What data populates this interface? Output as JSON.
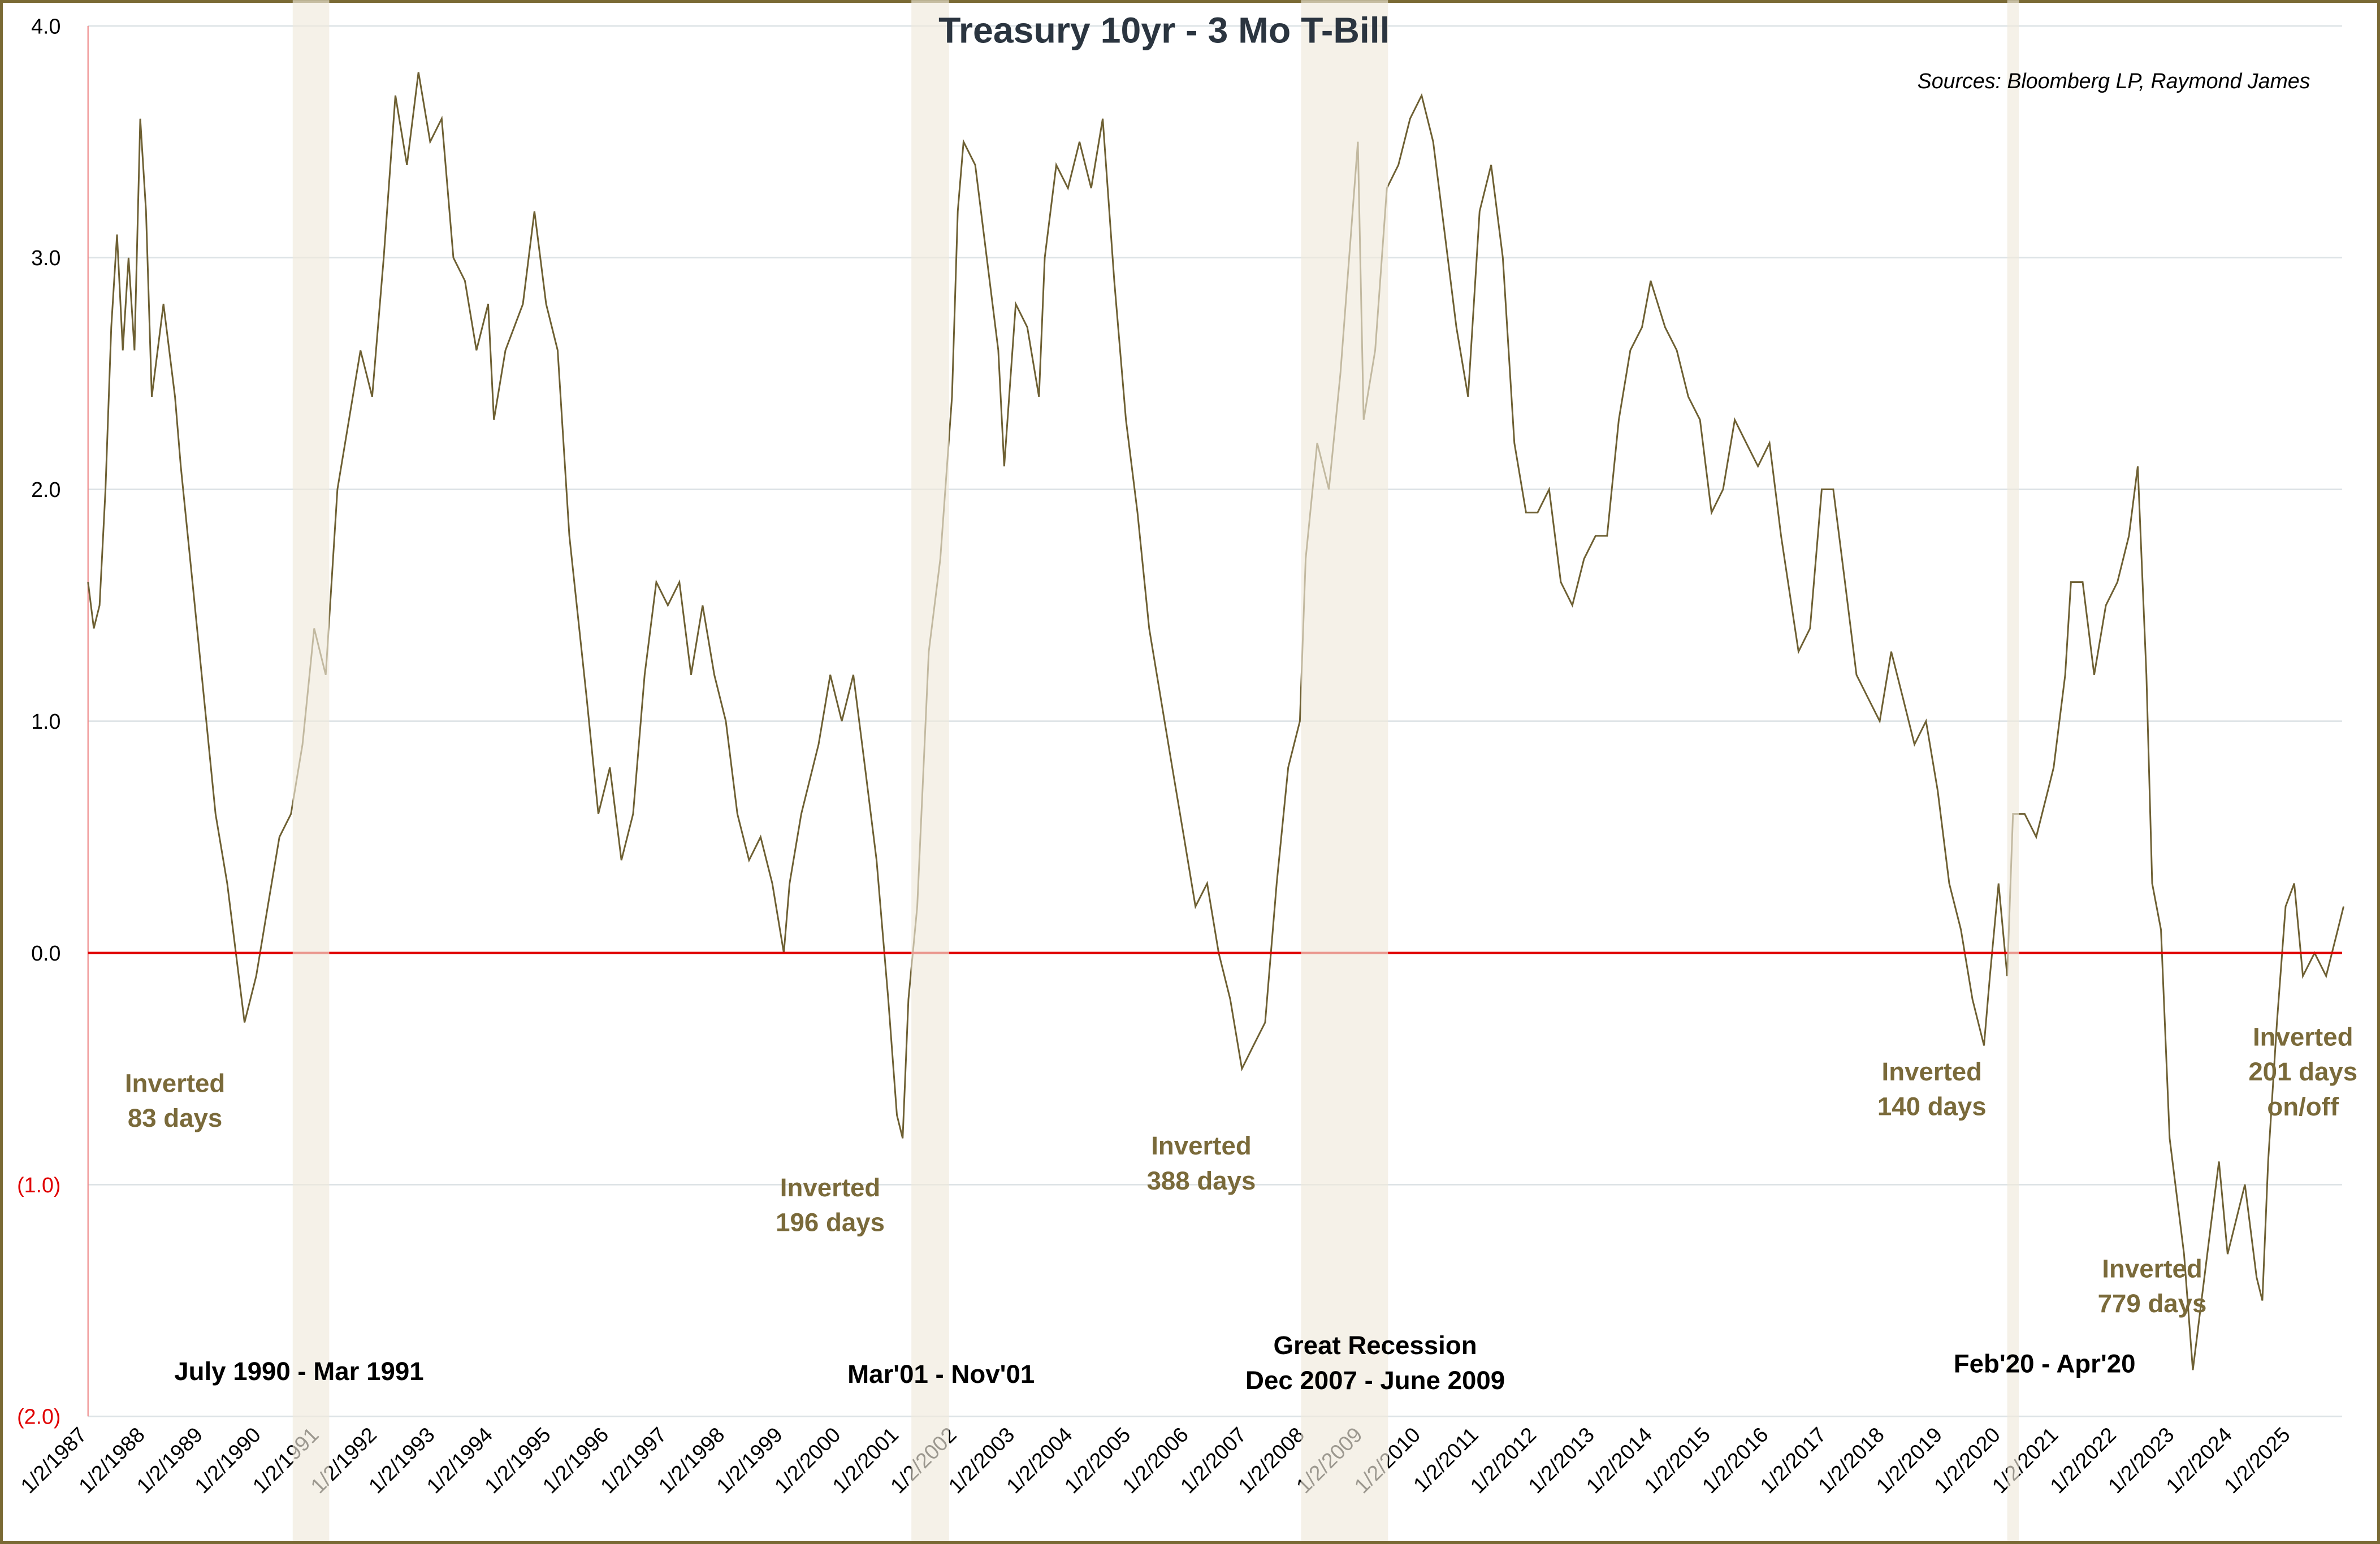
{
  "chart_data": {
    "type": "line",
    "title": "Treasury 10yr - 3 Mo T-Bill",
    "source_note": "Sources: Bloomberg LP, Raymond James",
    "ylim": [
      -2.0,
      4.0
    ],
    "yticks": [
      {
        "value": 4.0,
        "label": "4.0"
      },
      {
        "value": 3.0,
        "label": "3.0"
      },
      {
        "value": 2.0,
        "label": "2.0"
      },
      {
        "value": 1.0,
        "label": "1.0"
      },
      {
        "value": 0.0,
        "label": "0.0"
      },
      {
        "value": -1.0,
        "label": "(1.0)"
      },
      {
        "value": -2.0,
        "label": "(2.0)"
      }
    ],
    "xlim": [
      1987.0,
      2025.95
    ],
    "xtick_labels": [
      "1/2/1987",
      "1/2/1988",
      "1/2/1989",
      "1/2/1990",
      "1/2/1991",
      "1/2/1992",
      "1/2/1993",
      "1/2/1994",
      "1/2/1995",
      "1/2/1996",
      "1/2/1997",
      "1/2/1998",
      "1/2/1999",
      "1/2/2000",
      "1/2/2001",
      "1/2/2002",
      "1/2/2003",
      "1/2/2004",
      "1/2/2005",
      "1/2/2006",
      "1/2/2007",
      "1/2/2008",
      "1/2/2009",
      "1/2/2010",
      "1/2/2011",
      "1/2/2012",
      "1/2/2013",
      "1/2/2014",
      "1/2/2015",
      "1/2/2016",
      "1/2/2017",
      "1/2/2018",
      "1/2/2019",
      "1/2/2020",
      "1/2/2021",
      "1/2/2022",
      "1/2/2023",
      "1/2/2024",
      "1/2/2025"
    ],
    "grid": true,
    "colors": {
      "series": "#6e6033",
      "zero_line": "#e00000",
      "negative_tick": "#e00000",
      "recession_band": "#efe9dc",
      "annotation": "#7a6a3a",
      "title": "#2b3540"
    },
    "recessions": [
      {
        "start": 1990.53,
        "end": 1991.16,
        "label": [
          "July 1990 - Mar 1991"
        ]
      },
      {
        "start": 2001.2,
        "end": 2001.85,
        "label": [
          "Mar'01 - Nov'01"
        ]
      },
      {
        "start": 2007.92,
        "end": 2009.42,
        "label": [
          "Great Recession",
          "Dec 2007 - June 2009"
        ]
      },
      {
        "start": 2020.1,
        "end": 2020.3,
        "label": [
          "Feb'20 - Apr'20"
        ]
      }
    ],
    "annotations": [
      {
        "x": 1988.5,
        "y": -0.6,
        "lines": [
          "Inverted",
          "83 days"
        ]
      },
      {
        "x": 1999.8,
        "y": -1.05,
        "lines": [
          "Inverted",
          "196 days"
        ]
      },
      {
        "x": 2006.2,
        "y": -0.87,
        "lines": [
          "Inverted",
          "388 days"
        ]
      },
      {
        "x": 2018.8,
        "y": -0.55,
        "lines": [
          "Inverted",
          "140 days"
        ]
      },
      {
        "x": 2022.6,
        "y": -1.4,
        "lines": [
          "Inverted",
          "779 days"
        ]
      },
      {
        "x": 2025.2,
        "y": -0.4,
        "lines": [
          "Inverted",
          "201 days",
          "on/off"
        ]
      }
    ],
    "series": [
      {
        "x": [
          1987.0,
          1987.1,
          1987.2,
          1987.3,
          1987.4,
          1987.5,
          1987.6,
          1987.7,
          1987.8,
          1987.9,
          1988.0,
          1988.1,
          1988.3,
          1988.5,
          1988.6,
          1988.8,
          1989.0,
          1989.2,
          1989.4,
          1989.5,
          1989.7,
          1989.9,
          1990.1,
          1990.3,
          1990.5,
          1990.7,
          1990.9,
          1991.1,
          1991.3,
          1991.5,
          1991.7,
          1991.9,
          1992.1,
          1992.3,
          1992.5,
          1992.7,
          1992.9,
          1993.1,
          1993.3,
          1993.5,
          1993.7,
          1993.9,
          1994.0,
          1994.2,
          1994.5,
          1994.7,
          1994.9,
          1995.1,
          1995.3,
          1995.6,
          1995.8,
          1996.0,
          1996.2,
          1996.4,
          1996.6,
          1996.8,
          1997.0,
          1997.2,
          1997.4,
          1997.6,
          1997.8,
          1998.0,
          1998.2,
          1998.4,
          1998.6,
          1998.8,
          1999.0,
          1999.1,
          1999.3,
          1999.6,
          1999.8,
          2000.0,
          2000.2,
          2000.4,
          2000.6,
          2000.8,
          2000.95,
          2001.05,
          2001.15,
          2001.3,
          2001.5,
          2001.7,
          2001.9,
          2002.0,
          2002.1,
          2002.3,
          2002.5,
          2002.7,
          2002.8,
          2003.0,
          2003.2,
          2003.4,
          2003.5,
          2003.7,
          2003.9,
          2004.1,
          2004.3,
          2004.5,
          2004.7,
          2004.9,
          2005.1,
          2005.3,
          2005.5,
          2005.7,
          2005.9,
          2006.1,
          2006.3,
          2006.5,
          2006.7,
          2006.9,
          2007.1,
          2007.3,
          2007.5,
          2007.7,
          2007.9,
          2008.0,
          2008.2,
          2008.4,
          2008.6,
          2008.9,
          2009.0,
          2009.2,
          2009.4,
          2009.6,
          2009.8,
          2010.0,
          2010.2,
          2010.4,
          2010.6,
          2010.8,
          2011.0,
          2011.2,
          2011.4,
          2011.6,
          2011.8,
          2012.0,
          2012.2,
          2012.4,
          2012.6,
          2012.8,
          2013.0,
          2013.2,
          2013.4,
          2013.6,
          2013.8,
          2013.95,
          2014.2,
          2014.4,
          2014.6,
          2014.8,
          2015.0,
          2015.2,
          2015.4,
          2015.6,
          2015.8,
          2016.0,
          2016.2,
          2016.5,
          2016.7,
          2016.9,
          2017.1,
          2017.3,
          2017.5,
          2017.7,
          2017.9,
          2018.1,
          2018.3,
          2018.5,
          2018.7,
          2018.9,
          2019.1,
          2019.3,
          2019.5,
          2019.7,
          2019.8,
          2019.95,
          2020.1,
          2020.2,
          2020.4,
          2020.6,
          2020.8,
          2020.9,
          2021.1,
          2021.2,
          2021.4,
          2021.6,
          2021.8,
          2022.0,
          2022.2,
          2022.35,
          2022.5,
          2022.6,
          2022.75,
          2022.9,
          2023.0,
          2023.15,
          2023.3,
          2023.45,
          2023.6,
          2023.75,
          2023.9,
          2024.0,
          2024.2,
          2024.4,
          2024.5,
          2024.6,
          2024.75,
          2024.9,
          2025.05,
          2025.2,
          2025.4,
          2025.6,
          2025.8,
          2025.9
        ],
        "y": [
          1.6,
          1.4,
          1.5,
          2.0,
          2.7,
          3.1,
          2.6,
          3.0,
          2.6,
          3.6,
          3.2,
          2.4,
          2.8,
          2.4,
          2.1,
          1.6,
          1.1,
          0.6,
          0.3,
          0.1,
          -0.3,
          -0.1,
          0.2,
          0.5,
          0.6,
          0.9,
          1.4,
          1.2,
          2.0,
          2.3,
          2.6,
          2.4,
          3.0,
          3.7,
          3.4,
          3.8,
          3.5,
          3.6,
          3.0,
          2.9,
          2.6,
          2.8,
          2.3,
          2.6,
          2.8,
          3.2,
          2.8,
          2.6,
          1.8,
          1.1,
          0.6,
          0.8,
          0.4,
          0.6,
          1.2,
          1.6,
          1.5,
          1.6,
          1.2,
          1.5,
          1.2,
          1.0,
          0.6,
          0.4,
          0.5,
          0.3,
          0.0,
          0.3,
          0.6,
          0.9,
          1.2,
          1.0,
          1.2,
          0.8,
          0.4,
          -0.2,
          -0.7,
          -0.8,
          -0.2,
          0.2,
          1.3,
          1.7,
          2.4,
          3.2,
          3.5,
          3.4,
          3.0,
          2.6,
          2.1,
          2.8,
          2.7,
          2.4,
          3.0,
          3.4,
          3.3,
          3.5,
          3.3,
          3.6,
          2.9,
          2.3,
          1.9,
          1.4,
          1.1,
          0.8,
          0.5,
          0.2,
          0.3,
          0.0,
          -0.2,
          -0.5,
          -0.4,
          -0.3,
          0.3,
          0.8,
          1.0,
          1.7,
          2.2,
          2.0,
          2.5,
          3.5,
          2.3,
          2.6,
          3.3,
          3.4,
          3.6,
          3.7,
          3.5,
          3.1,
          2.7,
          2.4,
          3.2,
          3.4,
          3.0,
          2.2,
          1.9,
          1.9,
          2.0,
          1.6,
          1.5,
          1.7,
          1.8,
          1.8,
          2.3,
          2.6,
          2.7,
          2.9,
          2.7,
          2.6,
          2.4,
          2.3,
          1.9,
          2.0,
          2.3,
          2.2,
          2.1,
          2.2,
          1.8,
          1.3,
          1.4,
          2.0,
          2.0,
          1.6,
          1.2,
          1.1,
          1.0,
          1.3,
          1.1,
          0.9,
          1.0,
          0.7,
          0.3,
          0.1,
          -0.2,
          -0.4,
          -0.1,
          0.3,
          -0.1,
          0.6,
          0.6,
          0.5,
          0.7,
          0.8,
          1.2,
          1.6,
          1.6,
          1.2,
          1.5,
          1.6,
          1.8,
          2.1,
          1.2,
          0.3,
          0.1,
          -0.8,
          -1.0,
          -1.3,
          -1.8,
          -1.5,
          -1.2,
          -0.9,
          -1.3,
          -1.2,
          -1.0,
          -1.4,
          -1.5,
          -0.9,
          -0.3,
          0.2,
          0.3,
          -0.1,
          0.0,
          -0.1,
          0.1,
          0.2
        ]
      }
    ]
  }
}
